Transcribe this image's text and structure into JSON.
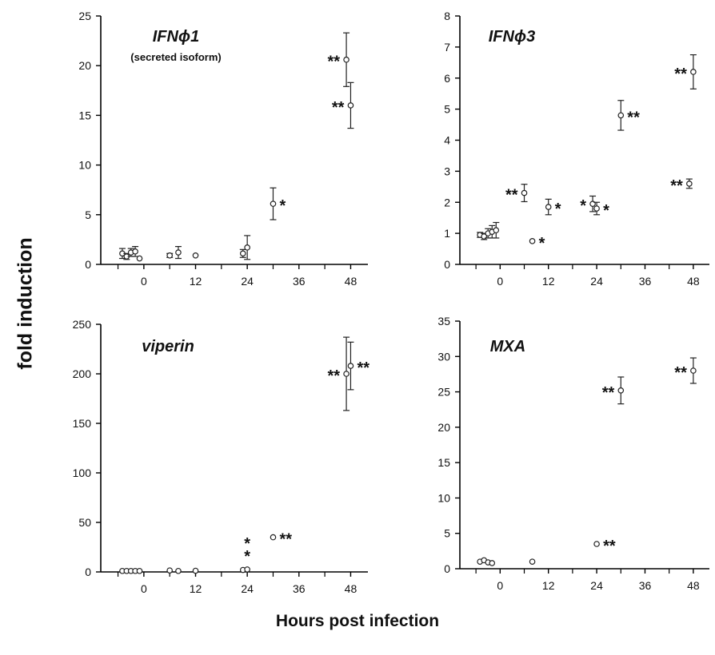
{
  "figure": {
    "ylabel": "fold induction",
    "xlabel": "Hours post infection"
  },
  "chart_data": [
    {
      "type": "scatter",
      "title": "IFNϕ1",
      "subtitle": "(secreted isoform)",
      "xticks": [
        0,
        12,
        24,
        36,
        48
      ],
      "xlim": [
        -10,
        52
      ],
      "ylim": [
        0,
        25
      ],
      "yticks": [
        0,
        5,
        10,
        15,
        20,
        25
      ],
      "points": [
        {
          "x": -5,
          "y": 1.1,
          "err": 0.5
        },
        {
          "x": -4,
          "y": 0.8,
          "err": 0.3
        },
        {
          "x": -3,
          "y": 1.2,
          "err": 0.4
        },
        {
          "x": -2,
          "y": 1.3,
          "err": 0.5
        },
        {
          "x": -1,
          "y": 0.6,
          "err": 0
        },
        {
          "x": 6,
          "y": 0.9,
          "err": 0.2
        },
        {
          "x": 8,
          "y": 1.2,
          "err": 0.6
        },
        {
          "x": 12,
          "y": 0.9,
          "err": 0
        },
        {
          "x": 23,
          "y": 1.1,
          "err": 0.4
        },
        {
          "x": 24,
          "y": 1.7,
          "err": 1.2
        },
        {
          "x": 30,
          "y": 6.1,
          "err": 1.6,
          "sig": "*"
        },
        {
          "x": 47,
          "y": 20.6,
          "err": 2.7,
          "sig": "**"
        },
        {
          "x": 48,
          "y": 16.0,
          "err": 2.3,
          "sig": "**"
        }
      ]
    },
    {
      "type": "scatter",
      "title": "IFNϕ3",
      "xticks": [
        0,
        12,
        24,
        36,
        48
      ],
      "xlim": [
        -10,
        52
      ],
      "ylim": [
        0,
        8
      ],
      "yticks": [
        0,
        1,
        2,
        3,
        4,
        5,
        6,
        7,
        8
      ],
      "points": [
        {
          "x": -5,
          "y": 0.95,
          "err": 0.08
        },
        {
          "x": -4,
          "y": 0.9,
          "err": 0.1
        },
        {
          "x": -3,
          "y": 1.0,
          "err": 0.15
        },
        {
          "x": -2,
          "y": 1.05,
          "err": 0.2
        },
        {
          "x": -1,
          "y": 1.1,
          "err": 0.25
        },
        {
          "x": 6,
          "y": 2.3,
          "err": 0.28,
          "sig": "**"
        },
        {
          "x": 8,
          "y": 0.75,
          "err": 0,
          "sig": "*"
        },
        {
          "x": 12,
          "y": 1.85,
          "err": 0.25,
          "sig": "*"
        },
        {
          "x": 23,
          "y": 1.95,
          "err": 0.25,
          "sig": "*"
        },
        {
          "x": 24,
          "y": 1.8,
          "err": 0.2,
          "sig": "*"
        },
        {
          "x": 30,
          "y": 4.8,
          "err": 0.48,
          "sig": "**"
        },
        {
          "x": 47,
          "y": 2.6,
          "err": 0.15,
          "sig": "**"
        },
        {
          "x": 48,
          "y": 6.2,
          "err": 0.55,
          "sig": "**"
        }
      ]
    },
    {
      "type": "scatter",
      "title": "viperin",
      "xticks": [
        0,
        12,
        24,
        36,
        48
      ],
      "xlim": [
        -10,
        52
      ],
      "ylim": [
        0,
        250
      ],
      "yticks": [
        0,
        50,
        100,
        150,
        200,
        250
      ],
      "points": [
        {
          "x": -5,
          "y": 1,
          "err": 0
        },
        {
          "x": -4,
          "y": 1,
          "err": 0
        },
        {
          "x": -3,
          "y": 1,
          "err": 0
        },
        {
          "x": -2,
          "y": 1,
          "err": 0
        },
        {
          "x": -1,
          "y": 1,
          "err": 0
        },
        {
          "x": 6,
          "y": 1.5,
          "err": 0
        },
        {
          "x": 8,
          "y": 1,
          "err": 0
        },
        {
          "x": 12,
          "y": 1.2,
          "err": 0
        },
        {
          "x": 23,
          "y": 2,
          "err": 0
        },
        {
          "x": 24,
          "y": 2.5,
          "err": 0,
          "sig": "*\n*"
        },
        {
          "x": 30,
          "y": 35,
          "err": 0,
          "sig": "**"
        },
        {
          "x": 47,
          "y": 200,
          "err": 37,
          "sig": "**"
        },
        {
          "x": 48,
          "y": 208,
          "err": 24,
          "sig": "**"
        }
      ]
    },
    {
      "type": "scatter",
      "title": "MXA",
      "xticks": [
        0,
        12,
        24,
        36,
        48
      ],
      "xlim": [
        -10,
        52
      ],
      "ylim": [
        0,
        35
      ],
      "yticks": [
        0,
        5,
        10,
        15,
        20,
        25,
        30,
        35
      ],
      "points": [
        {
          "x": -5,
          "y": 1.0,
          "err": 0
        },
        {
          "x": -4,
          "y": 1.2,
          "err": 0
        },
        {
          "x": -3,
          "y": 0.9,
          "err": 0
        },
        {
          "x": -2,
          "y": 0.8,
          "err": 0
        },
        {
          "x": 8,
          "y": 1.0,
          "err": 0
        },
        {
          "x": 24,
          "y": 3.5,
          "err": 0,
          "sig": "**"
        },
        {
          "x": 30,
          "y": 25.2,
          "err": 1.9,
          "sig": "**"
        },
        {
          "x": 48,
          "y": 28.0,
          "err": 1.8,
          "sig": "**"
        }
      ]
    }
  ]
}
